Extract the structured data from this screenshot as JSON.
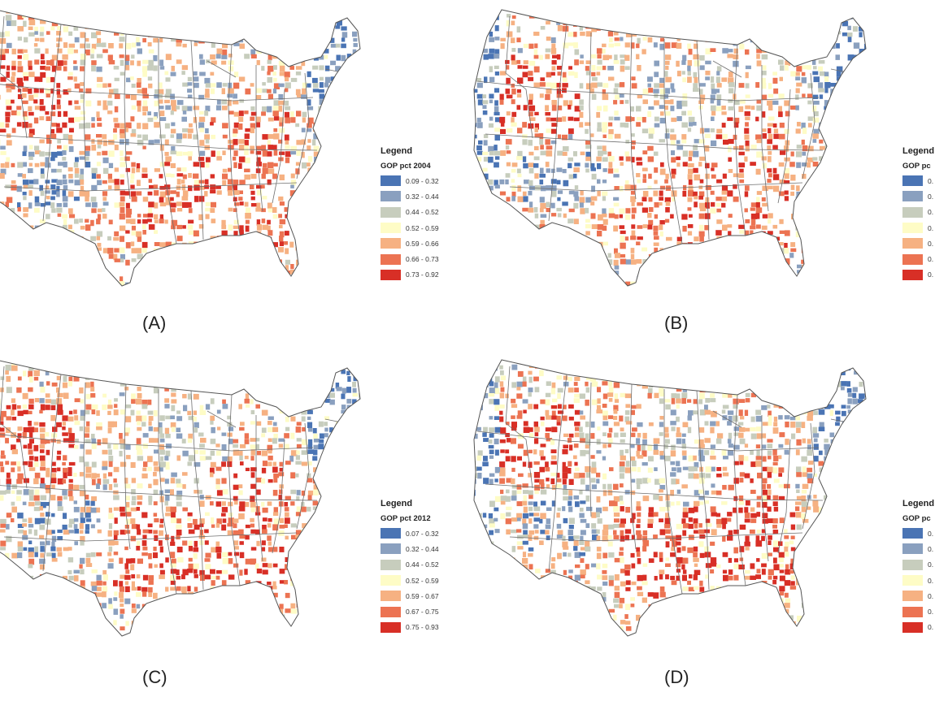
{
  "colors": [
    "#4a74b4",
    "#8aa0bf",
    "#c7cdbd",
    "#fefcc6",
    "#f6b182",
    "#ec7352",
    "#d82f26"
  ],
  "legend_heading": "Legend",
  "panels": [
    {
      "id": "a",
      "label": "(A)",
      "legend_sub": "GOP pct 2004",
      "seed": 11,
      "bins": [
        "0.09 - 0.32",
        "0.32 - 0.44",
        "0.44 - 0.52",
        "0.52 - 0.59",
        "0.59 - 0.66",
        "0.66 - 0.73",
        "0.73 - 0.92"
      ]
    },
    {
      "id": "b",
      "label": "(B)",
      "legend_sub": "GOP pc",
      "seed": 23,
      "bins": [
        "0.",
        "0.",
        "0.",
        "0.",
        "0.",
        "0.",
        "0."
      ]
    },
    {
      "id": "c",
      "label": "(C)",
      "legend_sub": "GOP pct 2012",
      "seed": 37,
      "bins": [
        "0.07 - 0.32",
        "0.32 - 0.44",
        "0.44 - 0.52",
        "0.52 - 0.59",
        "0.59 - 0.67",
        "0.67 - 0.75",
        "0.75 - 0.93"
      ]
    },
    {
      "id": "d",
      "label": "(D)",
      "legend_sub": "GOP pc",
      "seed": 53,
      "bins": [
        "0.",
        "0.",
        "0.",
        "0.",
        "0.",
        "0.",
        "0."
      ]
    }
  ]
}
